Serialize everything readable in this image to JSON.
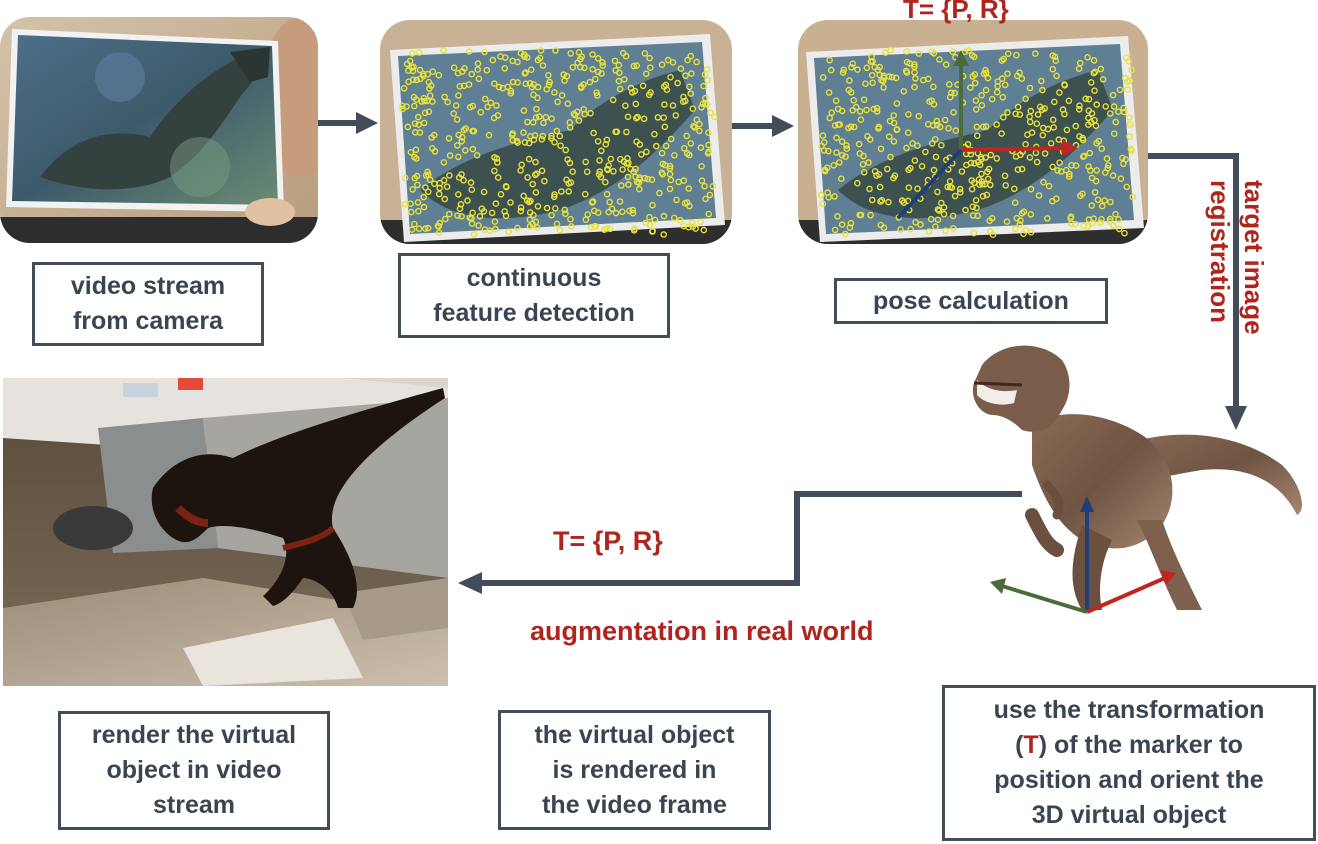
{
  "labels": {
    "video_stream": "video stream\nfrom camera",
    "feature_detection": "continuous\nfeature detection",
    "pose_calculation": "pose calculation",
    "render_virtual": "render the virtual\nobject in video\nstream",
    "virtual_rendered": "the virtual object\nis rendered in\nthe video frame",
    "use_transformation_pre": "use the transformation",
    "use_transformation_open": "(",
    "use_transformation_t": "T",
    "use_transformation_close": ") of the marker to",
    "use_transformation_post": "position and orient the\n3D virtual object"
  },
  "annotations": {
    "pose_formula_top": "T= {P, R}",
    "pose_formula_bottom": "T= {P, R}",
    "target_registration": "target image\nregistration",
    "augmentation": "augmentation in real world"
  },
  "colors": {
    "arrow": "#434c59",
    "accent_red": "#b0241e",
    "axis_green": "#4a6b3a",
    "axis_red": "#c0261f",
    "axis_blue": "#1f3f78",
    "feature_yellow": "#e8e23a"
  }
}
